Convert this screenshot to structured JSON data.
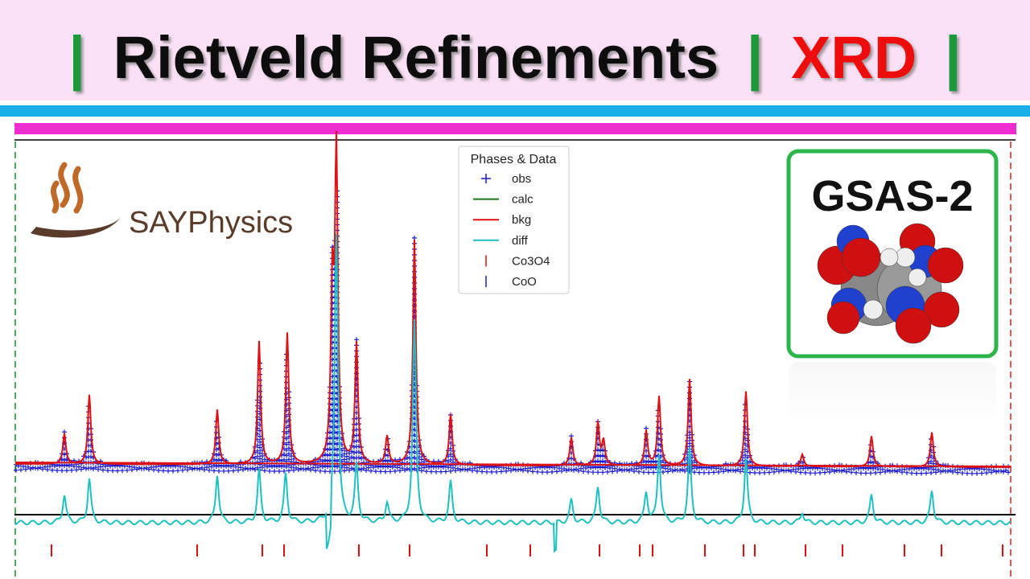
{
  "header": {
    "parts": [
      "|",
      "Rietveld Refinements",
      "|",
      "XRD",
      "|"
    ]
  },
  "logo": {
    "text": "SAYPhysics"
  },
  "legend": {
    "title": "Phases & Data",
    "entries": [
      "obs",
      "calc",
      "bkg",
      "diff",
      "Co3O4",
      "CoO"
    ]
  },
  "badge": {
    "text": "GSAS-2"
  }
}
